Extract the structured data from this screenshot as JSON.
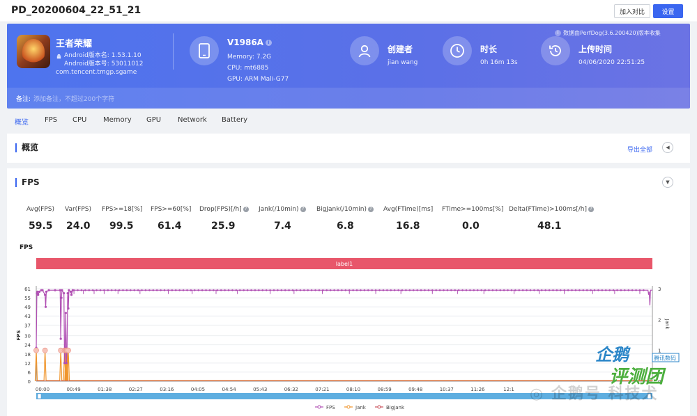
{
  "window": {
    "title": "PD_20200604_22_51_21"
  },
  "toolbar": {
    "compare_label": "加入对比",
    "settings_label": "设置"
  },
  "app": {
    "name": "王者荣耀",
    "version_name_line": "Android版本名: 1.53.1.10",
    "version_code_line": "Android版本号: 53011012",
    "package": "com.tencent.tmgp.sgame"
  },
  "device": {
    "model": "V1986A",
    "memory": "Memory: 7.2G",
    "cpu": "CPU: mt6885",
    "gpu": "GPU: ARM Mali-G77"
  },
  "creator": {
    "title": "创建者",
    "value": "jian wang"
  },
  "duration": {
    "title": "时长",
    "value": "0h 16m 13s"
  },
  "upload": {
    "title": "上传时间",
    "value": "04/06/2020 22:51:25"
  },
  "data_source_note": "数据由PerfDog(3.6.200420)版本收集",
  "note": {
    "label": "备注:",
    "placeholder": "添加备注，不超过200个字符"
  },
  "tabs": [
    {
      "label": "概览",
      "active": true
    },
    {
      "label": "FPS"
    },
    {
      "label": "CPU"
    },
    {
      "label": "Memory"
    },
    {
      "label": "GPU"
    },
    {
      "label": "Network"
    },
    {
      "label": "Battery"
    }
  ],
  "overview": {
    "title": "概览",
    "export_label": "导出全部"
  },
  "fps_panel": {
    "title": "FPS"
  },
  "metrics": [
    {
      "label": "Avg(FPS)",
      "value": "59.5",
      "help": false
    },
    {
      "label": "Var(FPS)",
      "value": "24.0",
      "help": false
    },
    {
      "label": "FPS>=18[%]",
      "value": "99.5",
      "help": false
    },
    {
      "label": "FPS>=60[%]",
      "value": "61.4",
      "help": false
    },
    {
      "label": "Drop(FPS)[/h]",
      "value": "25.9",
      "help": true
    },
    {
      "label": "Jank(/10min)",
      "value": "7.4",
      "help": true
    },
    {
      "label": "BigJank(/10min)",
      "value": "6.8",
      "help": true
    },
    {
      "label": "Avg(FTime)[ms]",
      "value": "16.8",
      "help": false
    },
    {
      "label": "FTime>=100ms[%]",
      "value": "0.0",
      "help": false
    },
    {
      "label": "Delta(FTime)>100ms[/h]",
      "value": "48.1",
      "help": true
    }
  ],
  "chart_title": "FPS",
  "label_band": "label1",
  "chart_data": {
    "type": "line",
    "ylabel": "FPS",
    "y2label": "Jank",
    "yticks": [
      0,
      6,
      12,
      18,
      24,
      30,
      37,
      43,
      49,
      55,
      61
    ],
    "y2ticks": [
      0,
      1,
      2,
      3
    ],
    "xticks": [
      "00:00",
      "00:49",
      "01:38",
      "02:27",
      "03:16",
      "04:05",
      "04:54",
      "05:43",
      "06:32",
      "07:21",
      "08:10",
      "08:59",
      "09:48",
      "10:37",
      "11:26",
      "12:1"
    ],
    "ylim": [
      0,
      61
    ],
    "y2lim": [
      0,
      3
    ],
    "series": [
      {
        "name": "FPS",
        "color": "#b04fb3"
      },
      {
        "name": "Jank",
        "color": "#f0962e"
      },
      {
        "name": "BigJank",
        "color": "#c94f5a"
      }
    ],
    "fps_samples": [
      [
        0,
        22
      ],
      [
        1,
        58
      ],
      [
        2,
        59
      ],
      [
        3,
        57
      ],
      [
        5,
        59
      ],
      [
        8,
        60
      ],
      [
        10,
        60
      ],
      [
        14,
        57
      ],
      [
        15,
        49
      ],
      [
        16,
        59
      ],
      [
        20,
        60
      ],
      [
        30,
        60
      ],
      [
        38,
        60
      ],
      [
        39,
        28
      ],
      [
        40,
        55
      ],
      [
        41,
        60
      ],
      [
        44,
        58
      ],
      [
        45,
        12
      ],
      [
        46,
        22
      ],
      [
        47,
        45
      ],
      [
        48,
        12
      ],
      [
        49,
        20
      ],
      [
        50,
        58
      ],
      [
        51,
        48
      ],
      [
        52,
        60
      ],
      [
        55,
        59
      ],
      [
        56,
        57
      ],
      [
        58,
        60
      ],
      [
        70,
        60
      ],
      [
        100,
        60
      ],
      [
        150,
        60
      ],
      [
        200,
        60
      ],
      [
        250,
        60
      ],
      [
        300,
        60
      ],
      [
        350,
        60
      ],
      [
        400,
        60
      ],
      [
        450,
        60
      ],
      [
        500,
        60
      ],
      [
        550,
        60
      ],
      [
        600,
        60
      ],
      [
        650,
        60
      ],
      [
        700,
        60
      ],
      [
        750,
        60
      ],
      [
        800,
        60
      ],
      [
        850,
        60
      ],
      [
        900,
        60
      ],
      [
        950,
        60
      ],
      [
        973,
        60
      ],
      [
        974,
        57
      ],
      [
        975,
        59
      ],
      [
        976,
        50
      ],
      [
        977,
        60
      ],
      [
        980,
        60
      ]
    ],
    "fps_dips": [
      60,
      75,
      92,
      108,
      130,
      165,
      210,
      248,
      286,
      320,
      372,
      410,
      455,
      498,
      540,
      580,
      630,
      670,
      712,
      760,
      800,
      840,
      885,
      920,
      960
    ],
    "jank_events": [
      0,
      14,
      39,
      45,
      47,
      48,
      49,
      51
    ]
  }
}
